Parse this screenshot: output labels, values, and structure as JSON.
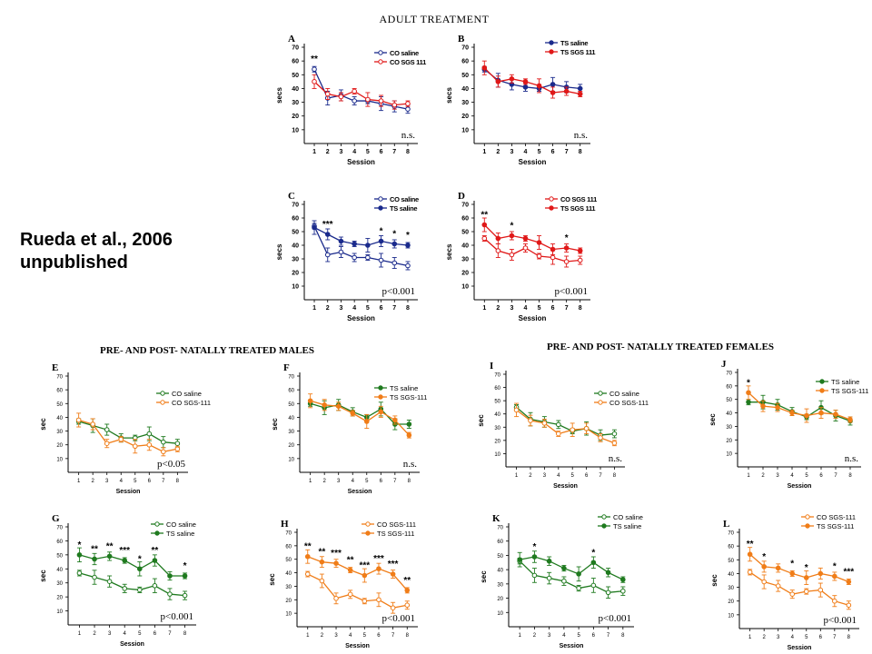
{
  "page": {
    "title": "ADULT TREATMENT",
    "credit_line1": "Rueda et al., 2006",
    "credit_line2": "unpublished",
    "males_heading": "PRE- AND POST- NATALLY TREATED MALES",
    "females_heading": "PRE- AND POST- NATALLY TREATED FEMALES"
  },
  "colors": {
    "blue": "#1a2a8c",
    "red": "#e01818",
    "green": "#1f7a1f",
    "orange": "#f07d18"
  },
  "chart_data": [
    {
      "id": "A",
      "type": "line",
      "xlabel": "Session",
      "ylabel": "secs",
      "ylim": [
        0,
        70
      ],
      "yticks": [
        10,
        20,
        30,
        40,
        50,
        60,
        70
      ],
      "categories": [
        "1",
        "2",
        "3",
        "4",
        "5",
        "6",
        "7",
        "8"
      ],
      "series": [
        {
          "name": "CO saline",
          "color": "blue",
          "filled": false,
          "values": [
            54,
            33,
            35,
            31,
            31,
            29,
            27,
            25
          ]
        },
        {
          "name": "CO SGS 111",
          "color": "red",
          "filled": false,
          "values": [
            45,
            36,
            34,
            38,
            32,
            31,
            28,
            29
          ]
        }
      ],
      "stars": [
        {
          "x": 1,
          "text": "**"
        }
      ],
      "stat": "n.s."
    },
    {
      "id": "B",
      "type": "line",
      "xlabel": "Session",
      "ylabel": "secs",
      "ylim": [
        0,
        70
      ],
      "yticks": [
        10,
        20,
        30,
        40,
        50,
        60,
        70
      ],
      "categories": [
        "1",
        "2",
        "3",
        "4",
        "5",
        "6",
        "7",
        "8"
      ],
      "series": [
        {
          "name": "TS saline",
          "color": "blue",
          "filled": true,
          "values": [
            54,
            46,
            43,
            41,
            40,
            43,
            41,
            40
          ]
        },
        {
          "name": "TS SGS 111",
          "color": "red",
          "filled": true,
          "values": [
            55,
            45,
            47,
            45,
            42,
            37,
            38,
            36
          ]
        }
      ],
      "stars": [],
      "stat": "n.s."
    },
    {
      "id": "C",
      "type": "line",
      "xlabel": "Session",
      "ylabel": "secs",
      "ylim": [
        0,
        70
      ],
      "yticks": [
        10,
        20,
        30,
        40,
        50,
        60,
        70
      ],
      "categories": [
        "1",
        "2",
        "3",
        "4",
        "5",
        "6",
        "7",
        "8"
      ],
      "series": [
        {
          "name": "CO saline",
          "color": "blue",
          "filled": false,
          "values": [
            54,
            33,
            35,
            31,
            31,
            29,
            27,
            25
          ]
        },
        {
          "name": "TS saline",
          "color": "blue",
          "filled": true,
          "values": [
            53,
            48,
            43,
            41,
            40,
            43,
            41,
            40
          ]
        }
      ],
      "stars": [
        {
          "x": 2,
          "text": "***"
        },
        {
          "x": 6,
          "text": "*"
        },
        {
          "x": 7,
          "text": "*"
        },
        {
          "x": 8,
          "text": "*"
        }
      ],
      "stat": "p<0.001"
    },
    {
      "id": "D",
      "type": "line",
      "xlabel": "Session",
      "ylabel": "secs",
      "ylim": [
        0,
        70
      ],
      "yticks": [
        10,
        20,
        30,
        40,
        50,
        60,
        70
      ],
      "categories": [
        "1",
        "2",
        "3",
        "4",
        "5",
        "6",
        "7",
        "8"
      ],
      "series": [
        {
          "name": "CO SGS 111",
          "color": "red",
          "filled": false,
          "values": [
            45,
            36,
            33,
            38,
            32,
            31,
            28,
            29
          ]
        },
        {
          "name": "TS SGS 111",
          "color": "red",
          "filled": true,
          "values": [
            55,
            45,
            47,
            45,
            42,
            37,
            38,
            36
          ]
        }
      ],
      "stars": [
        {
          "x": 1,
          "text": "**"
        },
        {
          "x": 3,
          "text": "*"
        },
        {
          "x": 7,
          "text": "*"
        }
      ],
      "stat": "p<0.001"
    },
    {
      "id": "E",
      "type": "line",
      "xlabel": "Session",
      "ylabel": "sec",
      "ylim": [
        0,
        70
      ],
      "yticks": [
        10,
        20,
        30,
        40,
        50,
        60,
        70
      ],
      "categories": [
        "1",
        "2",
        "3",
        "4",
        "5",
        "6",
        "7",
        "8"
      ],
      "series": [
        {
          "name": "CO saline",
          "color": "green",
          "filled": false,
          "values": [
            37,
            34,
            31,
            25,
            25,
            28,
            22,
            21
          ]
        },
        {
          "name": "CO SGS-111",
          "color": "orange",
          "filled": false,
          "values": [
            38,
            35,
            21,
            24,
            19,
            20,
            15,
            17
          ]
        }
      ],
      "stars": [],
      "stat": "p<0.05"
    },
    {
      "id": "F",
      "type": "line",
      "xlabel": "Session",
      "ylabel": "sec",
      "ylim": [
        0,
        70
      ],
      "yticks": [
        10,
        20,
        30,
        40,
        50,
        60,
        70
      ],
      "categories": [
        "1",
        "2",
        "3",
        "4",
        "5",
        "6",
        "7",
        "8"
      ],
      "series": [
        {
          "name": "TS saline",
          "color": "green",
          "filled": true,
          "values": [
            50,
            47,
            49,
            44,
            40,
            46,
            35,
            35
          ]
        },
        {
          "name": "TS SGS-111",
          "color": "orange",
          "filled": true,
          "values": [
            52,
            49,
            48,
            43,
            37,
            44,
            38,
            27
          ]
        }
      ],
      "stars": [],
      "stat": "n.s."
    },
    {
      "id": "G",
      "type": "line",
      "xlabel": "Session",
      "ylabel": "sec",
      "ylim": [
        0,
        70
      ],
      "yticks": [
        10,
        20,
        30,
        40,
        50,
        60,
        70
      ],
      "categories": [
        "1",
        "2",
        "3",
        "4",
        "5",
        "6",
        "7",
        "8"
      ],
      "series": [
        {
          "name": "CO saline",
          "color": "green",
          "filled": false,
          "values": [
            37,
            34,
            31,
            26,
            25,
            28,
            22,
            21
          ]
        },
        {
          "name": "TS saline",
          "color": "green",
          "filled": true,
          "values": [
            50,
            47,
            49,
            46,
            40,
            46,
            35,
            35
          ]
        }
      ],
      "stars": [
        {
          "x": 1,
          "text": "*"
        },
        {
          "x": 2,
          "text": "**"
        },
        {
          "x": 3,
          "text": "**"
        },
        {
          "x": 4,
          "text": "***"
        },
        {
          "x": 5,
          "text": "*"
        },
        {
          "x": 6,
          "text": "**"
        },
        {
          "x": 8,
          "text": "*"
        }
      ],
      "stat": "p<0.001"
    },
    {
      "id": "H",
      "type": "line",
      "xlabel": "Session",
      "ylabel": "sec",
      "ylim": [
        0,
        70
      ],
      "yticks": [
        10,
        20,
        30,
        40,
        50,
        60,
        70
      ],
      "categories": [
        "1",
        "2",
        "3",
        "4",
        "5",
        "6",
        "7",
        "8"
      ],
      "series": [
        {
          "name": "CO SGS-111",
          "color": "orange",
          "filled": false,
          "values": [
            39,
            34,
            21,
            24,
            19,
            20,
            14,
            16
          ]
        },
        {
          "name": "TS SGS-111",
          "color": "orange",
          "filled": true,
          "values": [
            52,
            48,
            47,
            42,
            38,
            43,
            39,
            27
          ]
        }
      ],
      "stars": [
        {
          "x": 1,
          "text": "**"
        },
        {
          "x": 2,
          "text": "**"
        },
        {
          "x": 3,
          "text": "***"
        },
        {
          "x": 4,
          "text": "**"
        },
        {
          "x": 5,
          "text": "***"
        },
        {
          "x": 6,
          "text": "***"
        },
        {
          "x": 7,
          "text": "***"
        },
        {
          "x": 8,
          "text": "**"
        }
      ],
      "stat": "p<0.001"
    },
    {
      "id": "I",
      "type": "line",
      "xlabel": "Session",
      "ylabel": "sec",
      "ylim": [
        0,
        70
      ],
      "yticks": [
        10,
        20,
        30,
        40,
        50,
        60,
        70
      ],
      "categories": [
        "1",
        "2",
        "3",
        "4",
        "5",
        "6",
        "7",
        "8"
      ],
      "series": [
        {
          "name": "CO saline",
          "color": "green",
          "filled": false,
          "values": [
            45,
            36,
            34,
            32,
            27,
            29,
            24,
            25
          ]
        },
        {
          "name": "CO SGS-111",
          "color": "orange",
          "filled": false,
          "values": [
            43,
            35,
            33,
            25,
            28,
            29,
            22,
            18
          ]
        }
      ],
      "stars": [],
      "stat": "n.s."
    },
    {
      "id": "J",
      "type": "line",
      "xlabel": "Session",
      "ylabel": "sec",
      "ylim": [
        0,
        70
      ],
      "yticks": [
        10,
        20,
        30,
        40,
        50,
        60,
        70
      ],
      "categories": [
        "1",
        "2",
        "3",
        "4",
        "5",
        "6",
        "7",
        "8"
      ],
      "series": [
        {
          "name": "TS saline",
          "color": "green",
          "filled": true,
          "values": [
            48,
            48,
            46,
            41,
            37,
            44,
            38,
            34
          ]
        },
        {
          "name": "TS SGS-111",
          "color": "orange",
          "filled": true,
          "values": [
            55,
            45,
            44,
            40,
            38,
            40,
            39,
            35
          ]
        }
      ],
      "stars": [
        {
          "x": 1,
          "text": "*"
        }
      ],
      "stat": "n.s."
    },
    {
      "id": "K",
      "type": "line",
      "xlabel": "Session",
      "ylabel": "sec",
      "ylim": [
        0,
        70
      ],
      "yticks": [
        10,
        20,
        30,
        40,
        50,
        60,
        70
      ],
      "categories": [
        "1",
        "2",
        "3",
        "4",
        "5",
        "6",
        "7",
        "8"
      ],
      "series": [
        {
          "name": "CO saline",
          "color": "green",
          "filled": false,
          "values": [
            46,
            36,
            34,
            32,
            27,
            29,
            24,
            25
          ]
        },
        {
          "name": "TS saline",
          "color": "green",
          "filled": true,
          "values": [
            47,
            49,
            46,
            41,
            37,
            45,
            38,
            33
          ]
        }
      ],
      "stars": [
        {
          "x": 2,
          "text": "*"
        },
        {
          "x": 6,
          "text": "*"
        }
      ],
      "stat": "p<0.001"
    },
    {
      "id": "L",
      "type": "line",
      "xlabel": "Session",
      "ylabel": "sec",
      "ylim": [
        0,
        70
      ],
      "yticks": [
        10,
        20,
        30,
        40,
        50,
        60,
        70
      ],
      "categories": [
        "1",
        "2",
        "3",
        "4",
        "5",
        "6",
        "7",
        "8"
      ],
      "series": [
        {
          "name": "CO SGS-111",
          "color": "orange",
          "filled": false,
          "values": [
            41,
            34,
            31,
            25,
            27,
            28,
            20,
            17
          ]
        },
        {
          "name": "TS SGS-111",
          "color": "orange",
          "filled": true,
          "values": [
            54,
            45,
            44,
            40,
            37,
            40,
            38,
            34
          ]
        }
      ],
      "stars": [
        {
          "x": 1,
          "text": "**"
        },
        {
          "x": 2,
          "text": "*"
        },
        {
          "x": 4,
          "text": "*"
        },
        {
          "x": 5,
          "text": "*"
        },
        {
          "x": 7,
          "text": "*"
        },
        {
          "x": 8,
          "text": "***"
        }
      ],
      "stat": "p<0.001"
    }
  ]
}
